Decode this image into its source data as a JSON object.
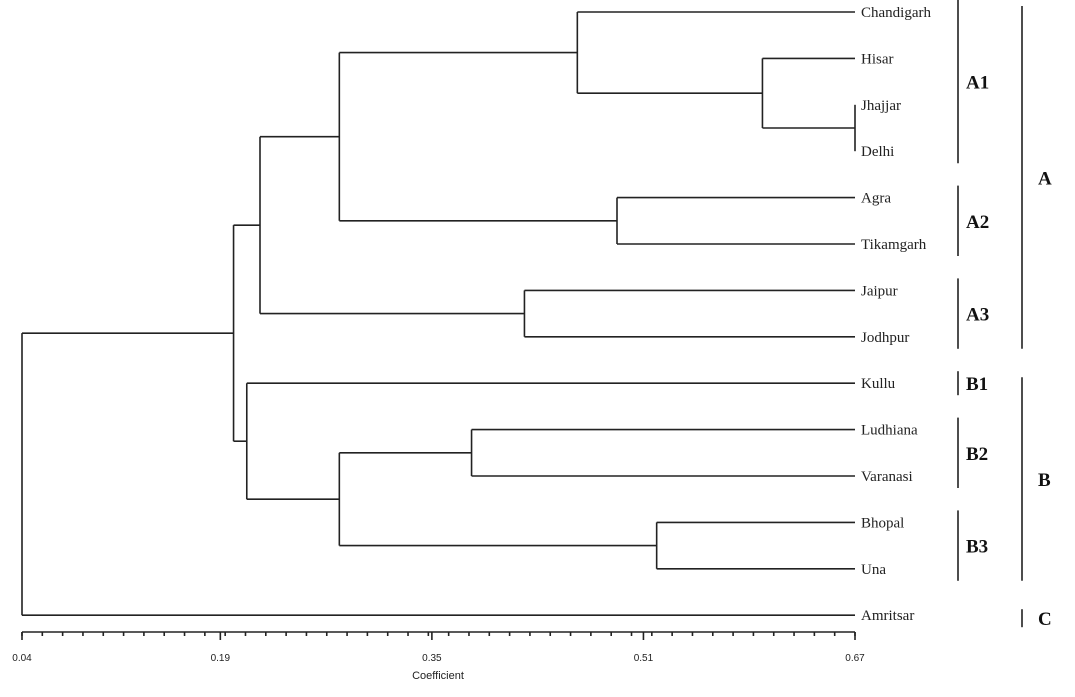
{
  "leaves": [
    "Chandigarh",
    "Hisar",
    "Jhajjar",
    "Delhi",
    "Agra",
    "Tikamgarh",
    "Jaipur",
    "Jodhpur",
    "Kullu",
    "Ludhiana",
    "Varanasi",
    "Bhopal",
    "Una",
    "Amritsar"
  ],
  "merges": [
    {
      "children": [
        "Jhajjar",
        "Delhi"
      ],
      "coefficient": 0.67
    },
    {
      "children": [
        "Hisar",
        "Jhajjar+Delhi"
      ],
      "coefficient": 0.6
    },
    {
      "children": [
        "Chandigarh",
        "Hisar+Jhajjar+Delhi"
      ],
      "coefficient": 0.46
    },
    {
      "children": [
        "Agra",
        "Tikamgarh"
      ],
      "coefficient": 0.49
    },
    {
      "children": [
        "A1",
        "A2"
      ],
      "coefficient": 0.28
    },
    {
      "children": [
        "Jaipur",
        "Jodhpur"
      ],
      "coefficient": 0.42
    },
    {
      "children": [
        "A1+A2",
        "A3"
      ],
      "coefficient": 0.22
    },
    {
      "children": [
        "Ludhiana",
        "Varanasi"
      ],
      "coefficient": 0.38
    },
    {
      "children": [
        "Bhopal",
        "Una"
      ],
      "coefficient": 0.52
    },
    {
      "children": [
        "B2",
        "B3"
      ],
      "coefficient": 0.28
    },
    {
      "children": [
        "Kullu",
        "B2+B3"
      ],
      "coefficient": 0.21
    },
    {
      "children": [
        "A",
        "B"
      ],
      "coefficient": 0.2
    },
    {
      "children": [
        "A+B",
        "Amritsar"
      ],
      "coefficient": 0.04
    }
  ],
  "subgroups": [
    {
      "label": "A1",
      "first": "Chandigarh",
      "last": "Delhi"
    },
    {
      "label": "A2",
      "first": "Agra",
      "last": "Tikamgarh"
    },
    {
      "label": "A3",
      "first": "Jaipur",
      "last": "Jodhpur"
    },
    {
      "label": "B1",
      "first": "Kullu",
      "last": "Kullu"
    },
    {
      "label": "B2",
      "first": "Ludhiana",
      "last": "Varanasi"
    },
    {
      "label": "B3",
      "first": "Bhopal",
      "last": "Una"
    }
  ],
  "groups": [
    {
      "label": "A",
      "first": "Chandigarh",
      "last": "Jodhpur"
    },
    {
      "label": "B",
      "first": "Kullu",
      "last": "Una"
    },
    {
      "label": "C",
      "first": "Amritsar",
      "last": "Amritsar"
    }
  ],
  "axis": {
    "title": "Coefficient",
    "range": [
      0.04,
      0.67
    ],
    "tick_labels": [
      "0.04",
      "0.19",
      "0.35",
      "0.51",
      "0.67"
    ],
    "tick_values": [
      0.04,
      0.19,
      0.35,
      0.51,
      0.67
    ]
  }
}
